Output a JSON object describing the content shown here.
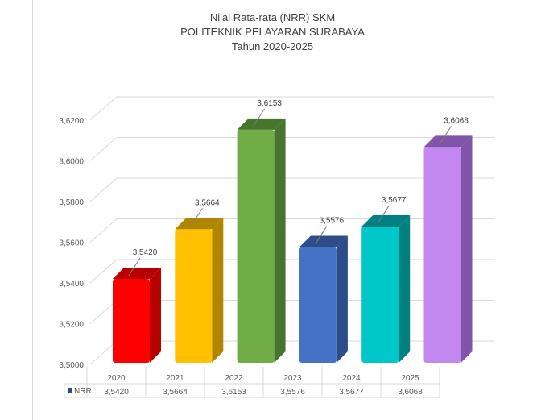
{
  "chart_data": {
    "type": "bar",
    "title": [
      "Nilai Rata-rata (NRR) SKM",
      "POLITEKNIK PELAYARAN SURABAYA",
      "Tahun 2020-2025"
    ],
    "categories": [
      "2020",
      "2021",
      "2022",
      "2023",
      "2024",
      "2025"
    ],
    "series": [
      {
        "name": "NRR",
        "values": [
          3.542,
          3.5664,
          3.6153,
          3.5576,
          3.5677,
          3.6068
        ]
      }
    ],
    "value_labels": [
      "3,5420",
      "3,5664",
      "3,6153",
      "3,5576",
      "3,5677",
      "3,6068"
    ],
    "yticks": [
      "3,5000",
      "3,5200",
      "3,5400",
      "3,5600",
      "3,5800",
      "3,6000",
      "3,6200"
    ],
    "ylim": [
      3.5,
      3.62
    ],
    "bar_colors": [
      "#ff0000",
      "#ffc000",
      "#70ad47",
      "#4472c4",
      "#00c8c8",
      "#c387f0"
    ],
    "bar_side_colors": [
      "#b80000",
      "#b08600",
      "#48752e",
      "#2e4d88",
      "#008080",
      "#8054a8"
    ],
    "legend": "data-table",
    "grid": true
  }
}
